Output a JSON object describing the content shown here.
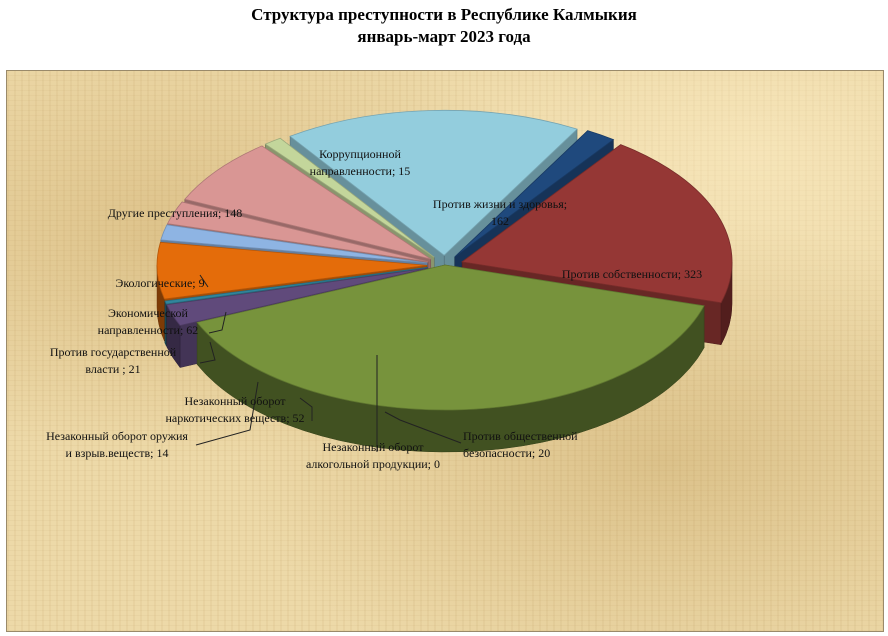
{
  "chart_data": {
    "type": "pie",
    "title_line1": "Структура преступности в  Республике Калмыкия",
    "title_line2": "январь-март 2023 года",
    "slices": [
      {
        "label_lines": [
          "Против жизни и здоровья;",
          "162"
        ],
        "value": 162,
        "color": "#953735",
        "exploded": true
      },
      {
        "label_lines": [
          "Против собственности; 323"
        ],
        "value": 323,
        "color": "#77933c",
        "exploded": false
      },
      {
        "label_lines": [
          "Против общественной",
          "безопасности; 20"
        ],
        "value": 20,
        "color": "#604a7b",
        "exploded": true
      },
      {
        "label_lines": [
          "Незаконный оборот",
          "алкогольной продукции; 0"
        ],
        "value": 0,
        "color": "#31859c",
        "exploded": true
      },
      {
        "label_lines": [
          "Незаконный оборот",
          "наркотических  веществ; 52"
        ],
        "value": 52,
        "color": "#e46c0a",
        "exploded": true
      },
      {
        "label_lines": [
          "Незаконный оборот оружия",
          "и взрыв.веществ;  14"
        ],
        "value": 14,
        "color": "#8eb4e3",
        "exploded": true
      },
      {
        "label_lines": [
          "Против  государственной",
          "власти  ; 21"
        ],
        "value": 21,
        "color": "#d99694",
        "exploded": true
      },
      {
        "label_lines": [
          "Экономической",
          "направленности; 62"
        ],
        "value": 62,
        "color": "#d99694",
        "exploded": true
      },
      {
        "label_lines": [
          "Экологические; 9"
        ],
        "value": 9,
        "color": "#c3d69b",
        "exploded": true
      },
      {
        "label_lines": [
          "Другие преступления;  148"
        ],
        "value": 148,
        "color": "#93cddd",
        "exploded": true
      },
      {
        "label_lines": [
          "Коррупционной",
          "направленности; 15"
        ],
        "value": 15,
        "color": "#1f497d",
        "exploded": true
      }
    ]
  }
}
